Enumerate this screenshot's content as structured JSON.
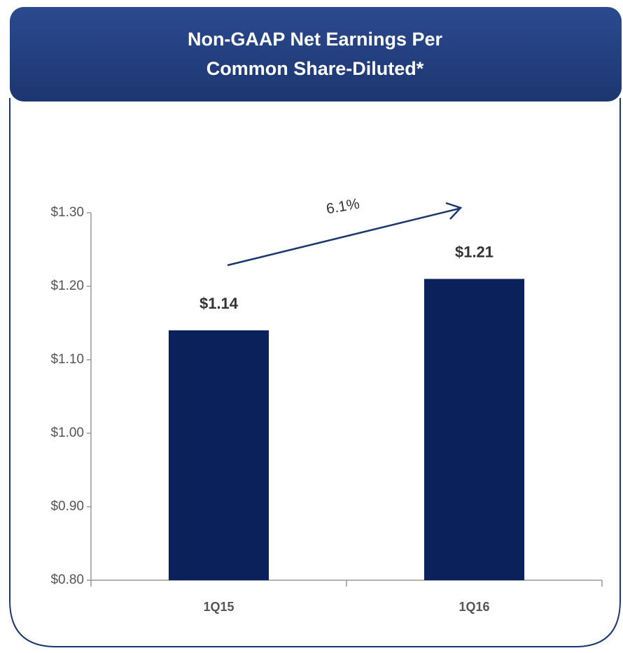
{
  "chart_data": {
    "type": "bar",
    "title": [
      "Non-GAAP Net Earnings Per",
      "Common Share-Diluted*"
    ],
    "categories": [
      "1Q15",
      "1Q16"
    ],
    "values": [
      1.14,
      1.21
    ],
    "value_labels": [
      "$1.14",
      "$1.21"
    ],
    "color": "#0a215c",
    "ylim": [
      0.8,
      1.3
    ],
    "yticks": [
      {
        "value": 0.8,
        "label": "$0.80"
      },
      {
        "value": 0.9,
        "label": "$0.90"
      },
      {
        "value": 1.0,
        "label": "$1.00"
      },
      {
        "value": 1.1,
        "label": "$1.10"
      },
      {
        "value": 1.2,
        "label": "$1.20"
      },
      {
        "value": 1.3,
        "label": "$1.30"
      }
    ],
    "annotation": "6.1%"
  }
}
